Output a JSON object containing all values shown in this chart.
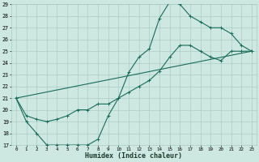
{
  "xlabel": "Humidex (Indice chaleur)",
  "background_color": "#cce8e0",
  "grid_color": "#aaccc4",
  "line_color": "#1a6b5a",
  "xlim": [
    -0.5,
    23.5
  ],
  "ylim": [
    17,
    29
  ],
  "xticks": [
    0,
    1,
    2,
    3,
    4,
    5,
    6,
    7,
    8,
    9,
    10,
    11,
    12,
    13,
    14,
    15,
    16,
    17,
    18,
    19,
    20,
    21,
    22,
    23
  ],
  "yticks": [
    17,
    18,
    19,
    20,
    21,
    22,
    23,
    24,
    25,
    26,
    27,
    28,
    29
  ],
  "line1_x": [
    0,
    1,
    2,
    3,
    4,
    5,
    6,
    7,
    8,
    9,
    10,
    11,
    12,
    13,
    14,
    15,
    16,
    17,
    18,
    19,
    20,
    21,
    22,
    23
  ],
  "line1_y": [
    21,
    19,
    18,
    17,
    17,
    17,
    17,
    17,
    17.5,
    19.5,
    21,
    23.2,
    24.5,
    25.2,
    27.8,
    29.2,
    29,
    28,
    27.5,
    27,
    27,
    26.5,
    25.5,
    25.0
  ],
  "line2_x": [
    0,
    1,
    2,
    3,
    4,
    5,
    6,
    7,
    8,
    9,
    10,
    11,
    12,
    13,
    14,
    15,
    16,
    17,
    18,
    19,
    20,
    21,
    22,
    23
  ],
  "line2_y": [
    21,
    19.5,
    19.2,
    19,
    19.2,
    19.5,
    20,
    20,
    20.5,
    20.5,
    21,
    21.5,
    22,
    22.5,
    23.3,
    24.5,
    25.5,
    25.5,
    25.0,
    24.5,
    24.2,
    25.0,
    25.0,
    25.0
  ],
  "line3_x": [
    0,
    23
  ],
  "line3_y": [
    21,
    25.0
  ],
  "marker_size": 3,
  "line_width": 0.8
}
